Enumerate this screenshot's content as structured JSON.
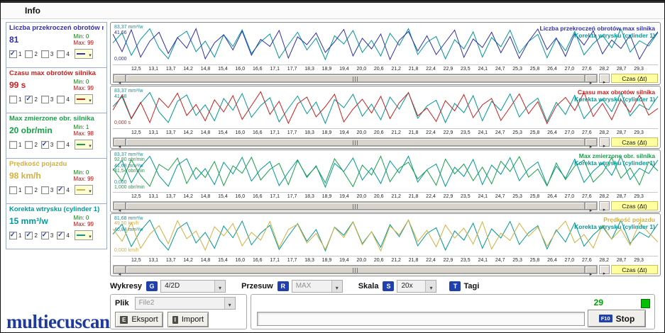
{
  "window": {
    "menu_info": "Info",
    "logo": "multiecuscan"
  },
  "colors": {
    "blue": "#3030b0",
    "red": "#cc2020",
    "green": "#18a048",
    "yellow": "#d4b040",
    "teal": "#009898",
    "badge": "#2040b0",
    "status_green": "#00a000",
    "time_label_bg": "#ffffa0"
  },
  "sidebar": {
    "check_labels": [
      "1",
      "2",
      "3",
      "4"
    ],
    "panels": [
      {
        "title": "Liczba przekroczeń obrotów max",
        "value": "81",
        "min": "Min: 0",
        "max": "Max: 99",
        "color": "blue",
        "checks": [
          true,
          false,
          false,
          false
        ]
      },
      {
        "title": "Czasu max obrotów silnika",
        "value": "99 s",
        "min": "Min: 0",
        "max": "Max: 99",
        "color": "red",
        "checks": [
          false,
          true,
          false,
          false
        ]
      },
      {
        "title": "Max zmierzone obr. silnika",
        "value": "20 obr/min",
        "min": "Min: 1",
        "max": "Max: 98",
        "color": "green",
        "checks": [
          false,
          false,
          true,
          false
        ]
      },
      {
        "title": "Prędkość pojazdu",
        "value": "98 km/h",
        "min": "Min: 0",
        "max": "Max: 99",
        "color": "yellow",
        "checks": [
          false,
          false,
          false,
          true
        ]
      },
      {
        "title": "Korekta wtrysku (cylinder 1)",
        "value": "15 mm³/w",
        "min": "Min: 0",
        "max": "Max: 99",
        "color": "teal",
        "checks": [
          true,
          true,
          true,
          true
        ]
      }
    ]
  },
  "charts": {
    "time_label": "Czas (Δt)",
    "x_ticks": [
      "12,5",
      "13,1",
      "13,7",
      "14,2",
      "14,8",
      "15,4",
      "16,0",
      "16,6",
      "17,1",
      "17,7",
      "18,3",
      "18,9",
      "19,4",
      "20,0",
      "20,6",
      "21,2",
      "21,8",
      "22,4",
      "22,9",
      "23,5",
      "24,1",
      "24,7",
      "25,3",
      "25,8",
      "26,4",
      "27,0",
      "27,6",
      "28,2",
      "28,7",
      "29,3"
    ],
    "series_data": {
      "blue": [
        80,
        30,
        92,
        15,
        60,
        85,
        25,
        70,
        40,
        95,
        10,
        55,
        78,
        35,
        88,
        20,
        65,
        45,
        90,
        12,
        72,
        50,
        83,
        28,
        58,
        93,
        18,
        68,
        38,
        80,
        8,
        62,
        87,
        32,
        75,
        22,
        57,
        91,
        14,
        66,
        42,
        85,
        27,
        73,
        11,
        59,
        94,
        36,
        69,
        17,
        81,
        49,
        89,
        24,
        63,
        39,
        77,
        9,
        54,
        86
      ],
      "red": [
        45,
        88,
        22,
        67,
        10,
        79,
        52,
        93,
        30,
        61,
        15,
        74,
        40,
        86,
        19,
        58,
        97,
        33,
        70,
        8,
        63,
        82,
        26,
        55,
        90,
        12,
        48,
        76,
        37,
        84,
        21,
        66,
        94,
        29,
        51,
        13,
        72,
        43,
        89,
        24,
        60,
        78,
        16,
        53,
        91,
        35,
        69,
        7,
        57,
        81,
        44,
        95,
        27,
        64,
        18,
        75,
        39,
        87,
        31,
        50
      ],
      "green": [
        60,
        25,
        85,
        40,
        10,
        72,
        55,
        90,
        18,
        63,
        35,
        80,
        12,
        68,
        47,
        92,
        28,
        58,
        75,
        15,
        83,
        38,
        66,
        20,
        88,
        50,
        9,
        70,
        42,
        95,
        23,
        61,
        78,
        31,
        56,
        13,
        87,
        45,
        73,
        26,
        64,
        17,
        81,
        52,
        94,
        36,
        59,
        11,
        76,
        29,
        67,
        84,
        22,
        48,
        91,
        33,
        62,
        14,
        79,
        54
      ],
      "yellow": [
        70,
        35,
        88,
        15,
        55,
        79,
        28,
        93,
        42,
        64,
        10,
        76,
        50,
        85,
        22,
        60,
        38,
        91,
        17,
        68,
        83,
        30,
        57,
        12,
        74,
        46,
        89,
        25,
        62,
        8,
        78,
        53,
        95,
        34,
        66,
        19,
        81,
        44,
        72,
        27,
        90,
        13,
        58,
        37,
        86,
        49,
        75,
        21,
        63,
        92,
        31,
        54,
        16,
        80,
        41,
        69,
        24,
        87,
        59,
        33
      ],
      "teal": [
        55,
        83,
        20,
        65,
        95,
        40,
        10,
        70,
        88,
        30,
        60,
        15,
        78,
        45,
        92,
        25,
        58,
        80,
        12,
        50,
        85,
        35,
        68,
        8,
        75,
        52,
        90,
        28,
        62,
        18,
        82,
        48,
        95,
        22,
        57,
        73,
        10,
        64,
        38,
        86,
        15,
        70,
        44,
        91,
        26,
        59,
        79,
        13,
        67,
        33,
        87,
        21,
        53,
        76,
        41,
        94,
        29,
        61,
        46,
        84
      ]
    },
    "panels": [
      {
        "type": "line",
        "title": "Liczba przekroczeń obrotów max silnika",
        "subtitle": "Korekta wtrysku (cylinder 1)",
        "title_color": "blue",
        "series": [
          "teal",
          "blue"
        ],
        "y_labels": [
          {
            "text": "83,37 mm³/w",
            "color": "teal",
            "y": 1
          },
          {
            "text": "41,66",
            "color": "blue",
            "y": 9
          },
          {
            "text": "0,000",
            "color": "blue",
            "y": 46
          }
        ]
      },
      {
        "type": "line",
        "title": "Czasu max obrotów silnika",
        "subtitle": "Korekta wtrysku (cylinder 1)",
        "title_color": "red",
        "series": [
          "teal",
          "red"
        ],
        "y_labels": [
          {
            "text": "83,37 mm³/w",
            "color": "teal",
            "y": 1
          },
          {
            "text": "41,68",
            "color": "teal",
            "y": 9
          },
          {
            "text": "0,000 s",
            "color": "red",
            "y": 46
          }
        ]
      },
      {
        "type": "line",
        "title": "Max zmierzone obr. silnika",
        "subtitle": "Korekta wtrysku (cylinder 1)",
        "title_color": "green",
        "series": [
          "teal",
          "green"
        ],
        "y_labels": [
          {
            "text": "83,37 mm³/w",
            "color": "teal",
            "y": 1
          },
          {
            "text": "92,80 obr/min",
            "color": "green",
            "y": 8
          },
          {
            "text": "41,68 mm³/w",
            "color": "teal",
            "y": 17
          },
          {
            "text": "41,54 obr/min",
            "color": "green",
            "y": 24
          },
          {
            "text": "0,000",
            "color": "teal",
            "y": 40
          },
          {
            "text": "1,000 obr/min",
            "color": "green",
            "y": 47
          }
        ]
      },
      {
        "type": "line",
        "title": "Prędkość pojazdu",
        "subtitle": "Korekta wtrysku (cylinder 1)",
        "title_color": "yellow",
        "series": [
          "teal",
          "yellow"
        ],
        "y_labels": [
          {
            "text": "81,68 mm³/w",
            "color": "teal",
            "y": 1
          },
          {
            "text": "49,50 km/h",
            "color": "yellow",
            "y": 8
          },
          {
            "text": "40,84 mm³/w",
            "color": "teal",
            "y": 17
          },
          {
            "text": "0,000 km/h",
            "color": "yellow",
            "y": 46
          }
        ]
      }
    ]
  },
  "controls": {
    "wykresy_label": "Wykresy",
    "wykresy_key": "G",
    "wykresy_value": "4/2D",
    "przesuw_label": "Przesuw",
    "przesuw_key": "R",
    "przesuw_value": "MAX",
    "skala_label": "Skala",
    "skala_key": "S",
    "skala_value": "20x",
    "tagi_key": "T",
    "tagi_label": "Tagi"
  },
  "footer": {
    "plik_label": "Plik",
    "plik_value": "File2",
    "eksport_key": "E",
    "eksport_label": "Eksport",
    "import_key": "I",
    "import_label": "Import",
    "counter": "29",
    "stop_key": "F10",
    "stop_label": "Stop"
  }
}
